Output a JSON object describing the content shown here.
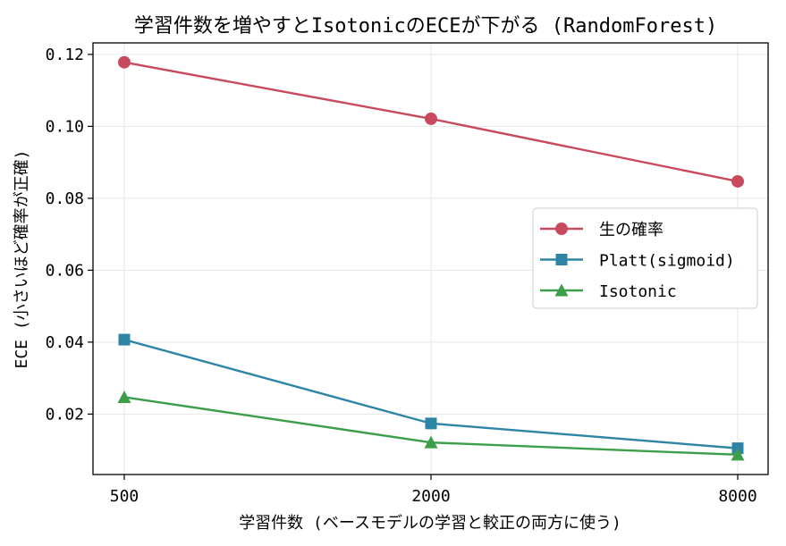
{
  "chart_data": {
    "type": "line",
    "title": "学習件数を増やすとIsotonicのECEが下がる (RandomForest)",
    "xlabel": "学習件数 (ベースモデルの学習と較正の両方に使う)",
    "ylabel": "ECE (小さいほど確率が正確)",
    "categories": [
      "500",
      "2000",
      "8000"
    ],
    "ylim": [
      0.0032,
      0.1232
    ],
    "yticks": [
      "0.02",
      "0.04",
      "0.06",
      "0.08",
      "0.10",
      "0.12"
    ],
    "grid": true,
    "legend_position": "center-right",
    "series": [
      {
        "name": "生の確率",
        "values": [
          0.1178,
          0.1021,
          0.0847
        ],
        "color": "#c84a5e",
        "marker": "circle"
      },
      {
        "name": "Platt(sigmoid)",
        "values": [
          0.0407,
          0.0174,
          0.0105
        ],
        "color": "#2e84a4",
        "marker": "square"
      },
      {
        "name": "Isotonic",
        "values": [
          0.0247,
          0.0121,
          0.0087
        ],
        "color": "#3d9e4a",
        "marker": "triangle"
      }
    ]
  }
}
